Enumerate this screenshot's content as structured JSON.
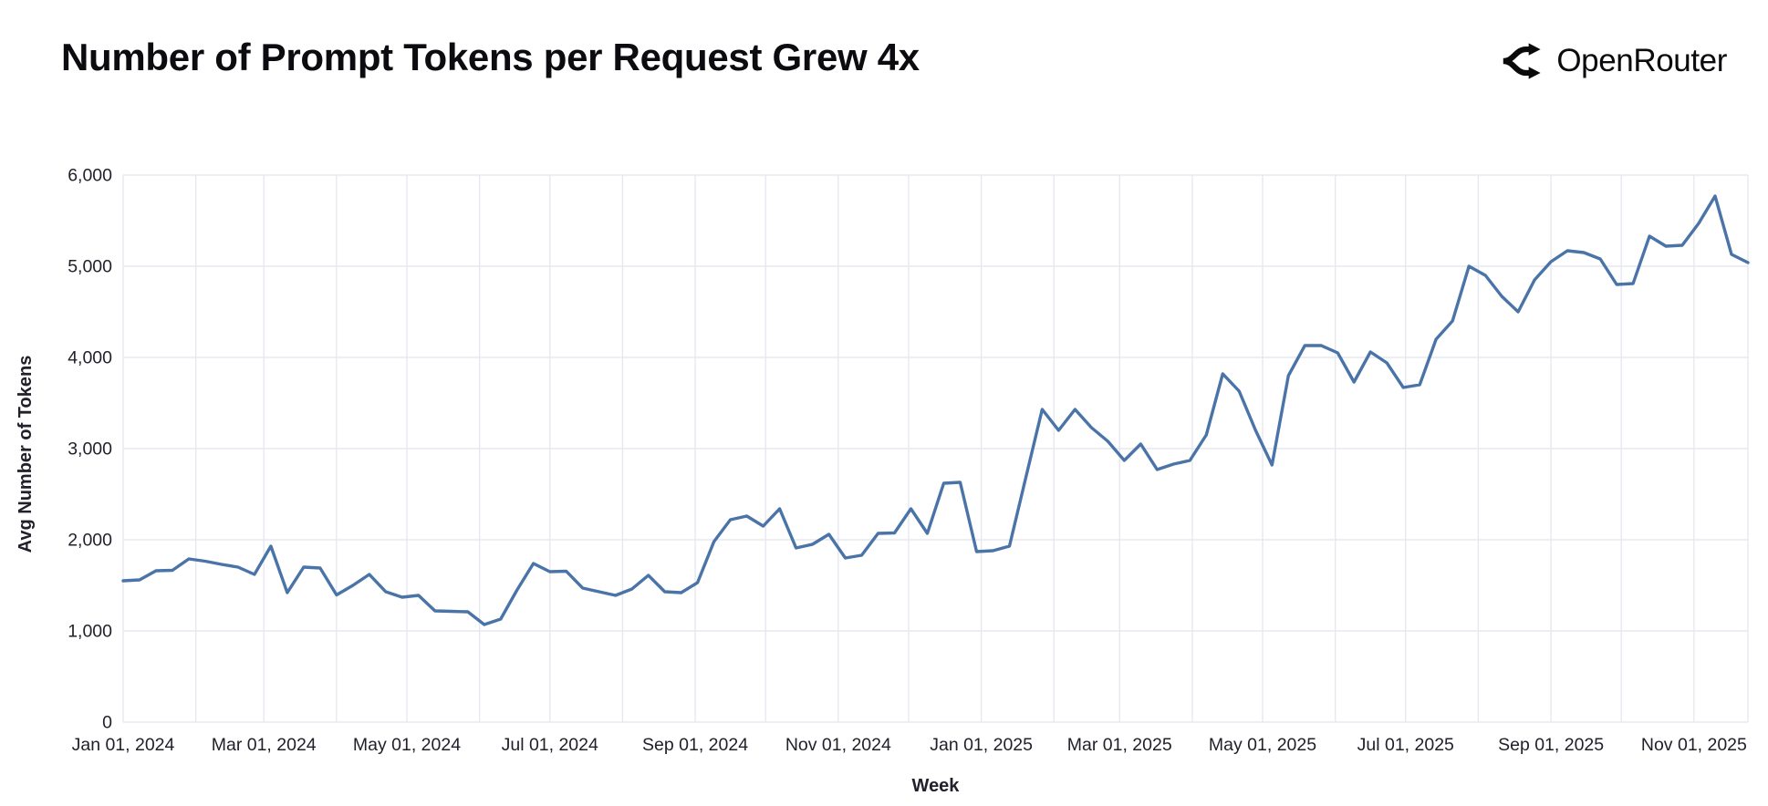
{
  "header": {
    "title": "Number of Prompt Tokens per Request Grew 4x",
    "logo_text": "OpenRouter"
  },
  "chart_data": {
    "type": "line",
    "title": "Number of Prompt Tokens per Request Grew 4x",
    "xlabel": "Week",
    "ylabel": "Avg Number of Tokens",
    "ylim": [
      0,
      6000
    ],
    "y_ticks": [
      0,
      1000,
      2000,
      3000,
      4000,
      5000,
      6000
    ],
    "y_tick_labels": [
      "0",
      "1,000",
      "2,000",
      "3,000",
      "4,000",
      "5,000",
      "6,000"
    ],
    "x_range": [
      "2024-01-01",
      "2025-11-24"
    ],
    "x_tick_dates": [
      "2024-01-01",
      "2024-03-01",
      "2024-05-01",
      "2024-07-01",
      "2024-09-01",
      "2024-11-01",
      "2025-01-01",
      "2025-03-01",
      "2025-05-01",
      "2025-07-01",
      "2025-09-01",
      "2025-11-01"
    ],
    "x_tick_labels": [
      "Jan 01, 2024",
      "Mar 01, 2024",
      "May 01, 2024",
      "Jul 01, 2024",
      "Sep 01, 2024",
      "Nov 01, 2024",
      "Jan 01, 2025",
      "Mar 01, 2025",
      "May 01, 2025",
      "Jul 01, 2025",
      "Sep 01, 2025",
      "Nov 01, 2025"
    ],
    "month_gridline_dates": [
      "2024-01-01",
      "2024-02-01",
      "2024-03-01",
      "2024-04-01",
      "2024-05-01",
      "2024-06-01",
      "2024-07-01",
      "2024-08-01",
      "2024-09-01",
      "2024-10-01",
      "2024-11-01",
      "2024-12-01",
      "2025-01-01",
      "2025-02-01",
      "2025-03-01",
      "2025-04-01",
      "2025-05-01",
      "2025-06-01",
      "2025-07-01",
      "2025-08-01",
      "2025-09-01",
      "2025-10-01",
      "2025-11-01",
      "2025-11-24"
    ],
    "grid": true,
    "legend": false,
    "line_color": "#4a74a8",
    "grid_color": "#e7e7f0",
    "tick_color": "#21212b",
    "title_color": "#0c0c10",
    "x_dates": [
      "2024-01-01",
      "2024-01-08",
      "2024-01-15",
      "2024-01-22",
      "2024-01-29",
      "2024-02-05",
      "2024-02-12",
      "2024-02-19",
      "2024-02-26",
      "2024-03-04",
      "2024-03-11",
      "2024-03-18",
      "2024-03-25",
      "2024-04-01",
      "2024-04-08",
      "2024-04-15",
      "2024-04-22",
      "2024-04-29",
      "2024-05-06",
      "2024-05-13",
      "2024-05-20",
      "2024-05-27",
      "2024-06-03",
      "2024-06-10",
      "2024-06-17",
      "2024-06-24",
      "2024-07-01",
      "2024-07-08",
      "2024-07-15",
      "2024-07-22",
      "2024-07-29",
      "2024-08-05",
      "2024-08-12",
      "2024-08-19",
      "2024-08-26",
      "2024-09-02",
      "2024-09-09",
      "2024-09-16",
      "2024-09-23",
      "2024-09-30",
      "2024-10-07",
      "2024-10-14",
      "2024-10-21",
      "2024-10-28",
      "2024-11-04",
      "2024-11-11",
      "2024-11-18",
      "2024-11-25",
      "2024-12-02",
      "2024-12-09",
      "2024-12-16",
      "2024-12-23",
      "2024-12-30",
      "2025-01-06",
      "2025-01-13",
      "2025-01-20",
      "2025-01-27",
      "2025-02-03",
      "2025-02-10",
      "2025-02-17",
      "2025-02-24",
      "2025-03-03",
      "2025-03-10",
      "2025-03-17",
      "2025-03-24",
      "2025-03-31",
      "2025-04-07",
      "2025-04-14",
      "2025-04-21",
      "2025-04-28",
      "2025-05-05",
      "2025-05-12",
      "2025-05-19",
      "2025-05-26",
      "2025-06-02",
      "2025-06-09",
      "2025-06-16",
      "2025-06-23",
      "2025-06-30",
      "2025-07-07",
      "2025-07-14",
      "2025-07-21",
      "2025-07-28",
      "2025-08-04",
      "2025-08-11",
      "2025-08-18",
      "2025-08-25",
      "2025-09-01",
      "2025-09-08",
      "2025-09-15",
      "2025-09-22",
      "2025-09-29",
      "2025-10-06",
      "2025-10-13",
      "2025-10-20",
      "2025-10-27",
      "2025-11-03",
      "2025-11-10",
      "2025-11-17",
      "2025-11-24"
    ],
    "values": [
      1550,
      1560,
      1660,
      1665,
      1790,
      1765,
      1730,
      1700,
      1620,
      1930,
      1420,
      1700,
      1690,
      1395,
      1500,
      1620,
      1430,
      1370,
      1390,
      1220,
      1215,
      1210,
      1070,
      1130,
      1450,
      1740,
      1650,
      1655,
      1470,
      1430,
      1390,
      1460,
      1610,
      1430,
      1420,
      1530,
      1980,
      2220,
      2260,
      2150,
      2340,
      1910,
      1950,
      2060,
      1800,
      1830,
      2070,
      2075,
      2340,
      2070,
      2620,
      2630,
      1870,
      1880,
      1930,
      2680,
      3430,
      3200,
      3430,
      3230,
      3080,
      2870,
      3050,
      2770,
      2830,
      2870,
      3150,
      3820,
      3630,
      3200,
      2820,
      3800,
      4130,
      4130,
      4050,
      3730,
      4060,
      3940,
      3670,
      3700,
      4200,
      4400,
      5000,
      4900,
      4670,
      4500,
      4850,
      5050,
      5170,
      5150,
      5080,
      4800,
      4810,
      5330,
      5220,
      5230,
      5470,
      5770,
      5130,
      5040
    ]
  }
}
